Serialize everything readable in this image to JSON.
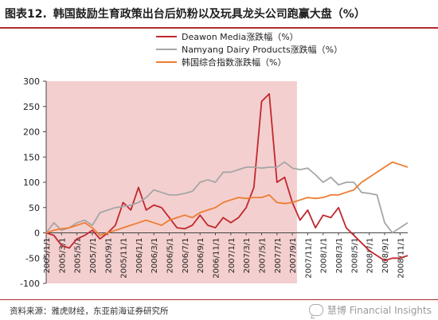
{
  "header": {
    "figure_label": "图表12.",
    "title": "韩国鼓励生育政策出台后奶粉以及玩具龙头公司跑赢大盘（%）"
  },
  "footer": {
    "source": "资料来源：雅虎财经，东亚前海证券研究所",
    "watermark": "慧博 Financial Insights"
  },
  "chart_data": {
    "type": "line",
    "x": [
      "2005/1/1",
      "2005/2/1",
      "2005/3/1",
      "2005/4/1",
      "2005/5/1",
      "2005/6/1",
      "2005/7/1",
      "2005/8/1",
      "2005/9/1",
      "2005/10/1",
      "2005/11/1",
      "2005/12/1",
      "2006/1/1",
      "2006/2/1",
      "2006/3/1",
      "2006/4/1",
      "2006/5/1",
      "2006/6/1",
      "2006/7/1",
      "2006/8/1",
      "2006/9/1",
      "2006/10/1",
      "2006/11/1",
      "2006/12/1",
      "2007/1/1",
      "2007/2/1",
      "2007/3/1",
      "2007/4/1",
      "2007/5/1",
      "2007/6/1",
      "2007/7/1",
      "2007/8/1",
      "2007/9/1",
      "2007/10/1",
      "2007/11/1",
      "2007/12/1",
      "2008/1/1",
      "2008/2/1",
      "2008/3/1",
      "2008/4/1",
      "2008/5/1",
      "2008/6/1",
      "2008/7/1",
      "2008/8/1",
      "2008/9/1",
      "2008/10/1",
      "2008/11/1",
      "2008/12/1"
    ],
    "xticks": [
      "2005/1/1",
      "2005/3/1",
      "2005/5/1",
      "2005/7/1",
      "2005/9/1",
      "2005/11/1",
      "2006/1/1",
      "2006/3/1",
      "2006/5/1",
      "2006/7/1",
      "2006/9/1",
      "2006/11/1",
      "2007/1/1",
      "2007/3/1",
      "2007/5/1",
      "2007/7/1",
      "2007/9/1",
      "2007/11/1",
      "2008/1/1",
      "2008/3/1",
      "2008/5/1",
      "2008/7/1",
      "2008/9/1",
      "2008/11/1"
    ],
    "ylim": [
      -100,
      300
    ],
    "yticks": [
      -100,
      -50,
      0,
      50,
      100,
      150,
      200,
      250,
      300
    ],
    "shaded_range": [
      "2005/1/1",
      "2007/9/1"
    ],
    "legend_position": "top-center",
    "series": [
      {
        "name": "Deawon Media涨跌幅（%）",
        "color": "#c0282d",
        "values": [
          0,
          -5,
          -25,
          -30,
          -12,
          -5,
          5,
          -12,
          0,
          15,
          60,
          45,
          90,
          45,
          55,
          50,
          30,
          10,
          8,
          15,
          35,
          15,
          10,
          30,
          20,
          30,
          50,
          90,
          260,
          275,
          100,
          110,
          60,
          25,
          45,
          10,
          35,
          30,
          50,
          10,
          -5,
          -20,
          -35,
          -45,
          -55,
          -50,
          -50,
          -45
        ]
      },
      {
        "name": "Namyang Dairy Products涨跌幅（%）",
        "color": "#a6a6a6",
        "values": [
          0,
          20,
          5,
          10,
          20,
          25,
          15,
          40,
          45,
          50,
          52,
          55,
          60,
          70,
          85,
          80,
          75,
          75,
          78,
          82,
          100,
          105,
          100,
          120,
          120,
          125,
          130,
          130,
          128,
          130,
          130,
          140,
          128,
          125,
          128,
          115,
          100,
          110,
          95,
          100,
          100,
          80,
          78,
          75,
          20,
          0,
          10,
          20
        ]
      },
      {
        "name": "韩国综合指数涨跌幅（%）",
        "color": "#ed7d31",
        "values": [
          0,
          5,
          8,
          10,
          15,
          20,
          10,
          -5,
          0,
          5,
          10,
          15,
          20,
          25,
          20,
          15,
          25,
          30,
          35,
          30,
          40,
          45,
          50,
          60,
          65,
          70,
          68,
          70,
          70,
          75,
          60,
          58,
          60,
          65,
          70,
          68,
          70,
          75,
          75,
          80,
          85,
          100,
          110,
          120,
          130,
          140,
          135,
          130
        ]
      }
    ]
  }
}
